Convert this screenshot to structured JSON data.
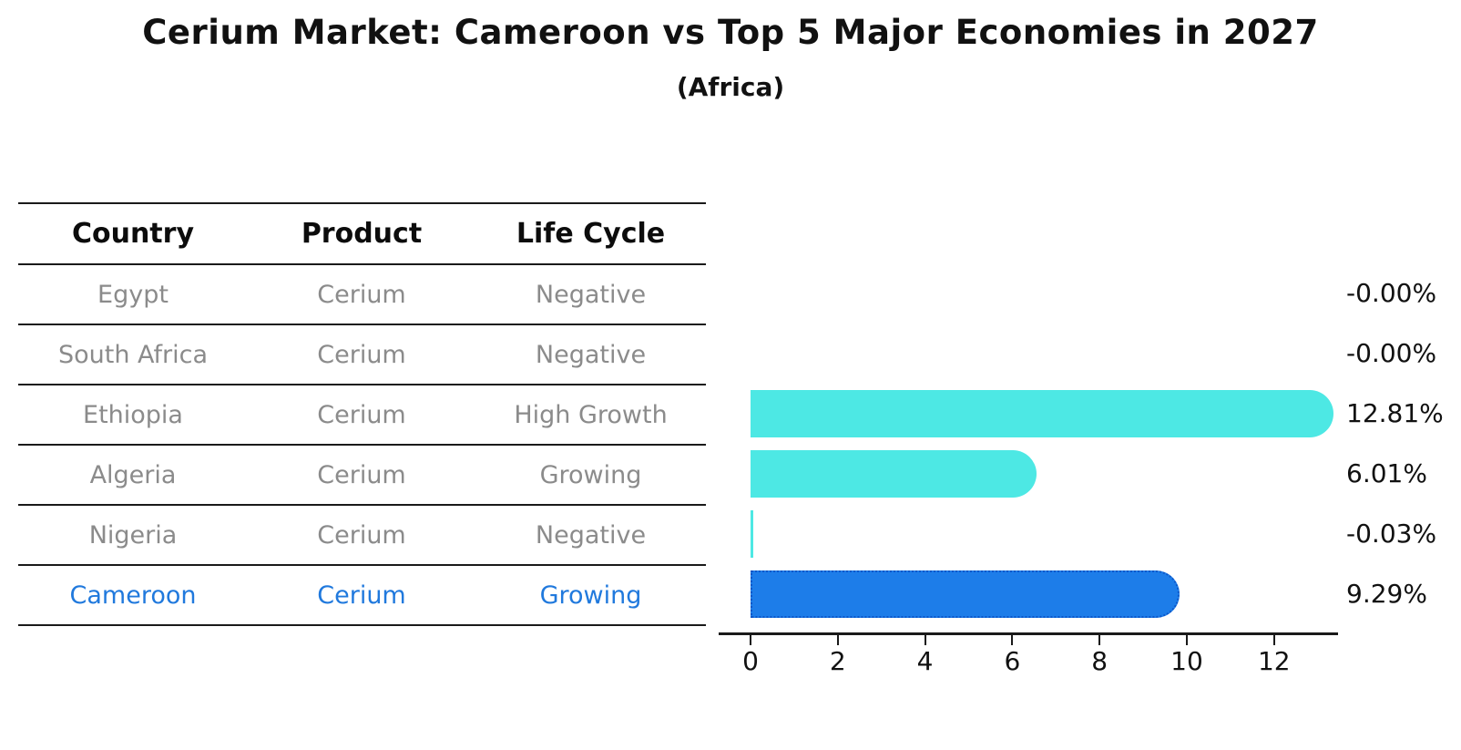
{
  "title": "Cerium Market: Cameroon vs Top 5 Major Economies in 2027",
  "subtitle": "(Africa)",
  "table": {
    "headers": [
      "Country",
      "Product",
      "Life Cycle"
    ],
    "rows": [
      {
        "country": "Egypt",
        "product": "Cerium",
        "life_cycle": "Negative",
        "highlight": false
      },
      {
        "country": "South Africa",
        "product": "Cerium",
        "life_cycle": "Negative",
        "highlight": false
      },
      {
        "country": "Ethiopia",
        "product": "Cerium",
        "life_cycle": "High Growth",
        "highlight": false
      },
      {
        "country": "Algeria",
        "product": "Cerium",
        "life_cycle": "Growing",
        "highlight": false
      },
      {
        "country": "Nigeria",
        "product": "Cerium",
        "life_cycle": "Negative",
        "highlight": false
      },
      {
        "country": "Cameroon",
        "product": "Cerium",
        "life_cycle": "Growing",
        "highlight": true
      }
    ]
  },
  "chart_data": {
    "type": "bar",
    "orientation": "horizontal",
    "title": "Cerium Market: Cameroon vs Top 5 Major Economies in 2027",
    "subtitle": "(Africa)",
    "categories": [
      "Egypt",
      "South Africa",
      "Ethiopia",
      "Algeria",
      "Nigeria",
      "Cameroon"
    ],
    "values": [
      -0.0,
      -0.0,
      12.81,
      6.01,
      -0.03,
      9.29
    ],
    "value_labels": [
      "-0.00%",
      "-0.00%",
      "12.81%",
      "6.01%",
      "-0.03%",
      "9.29%"
    ],
    "x_ticks": [
      0,
      2,
      4,
      6,
      8,
      10,
      12
    ],
    "xlim": [
      0,
      13.5
    ],
    "grid": false,
    "legend": false,
    "highlight_index": 5,
    "bar_color": "#4de8e4",
    "highlight_color": "#1d7de9",
    "highlight_border_color": "#0d57c9"
  },
  "colors": {
    "background": "#ffffff",
    "table_text": "#8b8b8b",
    "header_text": "#0c0c0c",
    "highlight_text": "#2079dd",
    "axis": "#1a1a1a"
  }
}
